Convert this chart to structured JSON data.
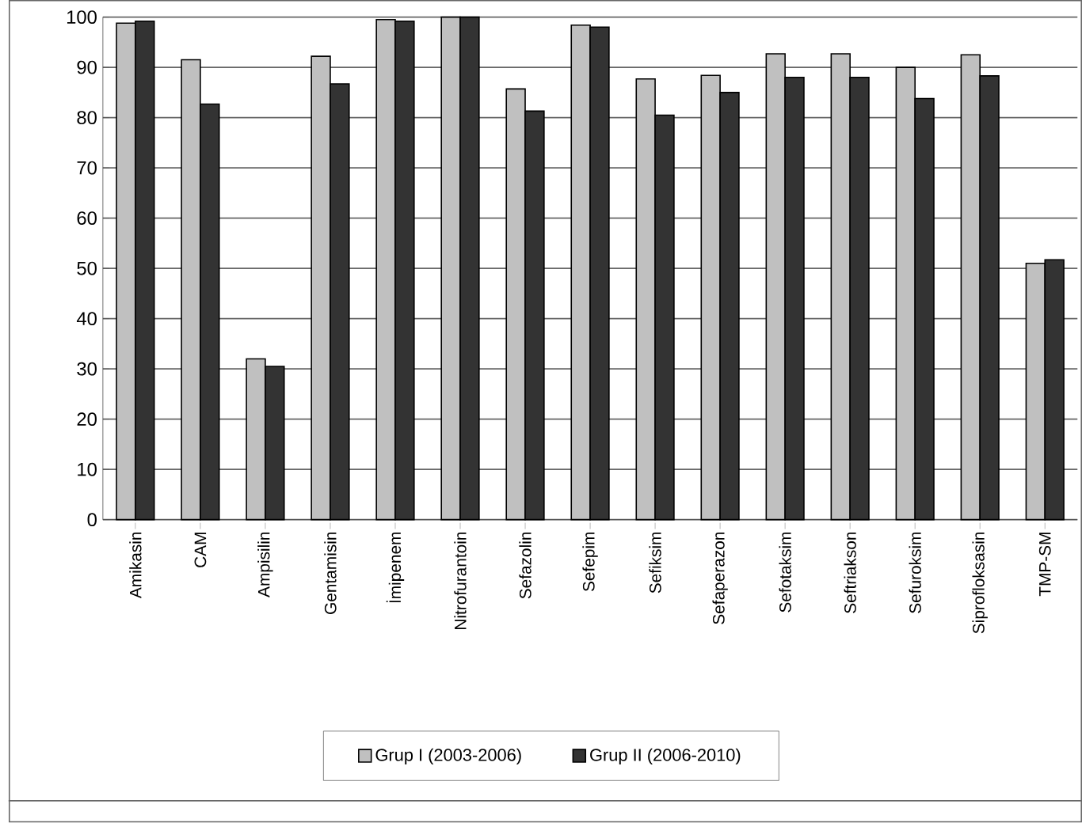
{
  "chart_data": {
    "type": "bar",
    "categories": [
      "Amikasin",
      "CAM",
      "Ampisilin",
      "Gentamisin",
      "İmipenem",
      "Nitrofurantoin",
      "Sefazolin",
      "Sefepim",
      "Sefiksim",
      "Sefaperazon",
      "Sefotaksim",
      "Seftriakson",
      "Sefuroksim",
      "Siprofloksasin",
      "TMP-SM"
    ],
    "series": [
      {
        "name": "Grup I (2003-2006)",
        "color": "#c0c0c0",
        "values": [
          98.8,
          91.5,
          32,
          92.2,
          99.5,
          100,
          85.7,
          98.4,
          87.7,
          88.4,
          92.7,
          92.7,
          90,
          92.5,
          51
        ]
      },
      {
        "name": "Grup II (2006-2010)",
        "color": "#333333",
        "values": [
          99.2,
          82.7,
          30.5,
          86.7,
          99.2,
          100,
          81.3,
          98,
          80.5,
          85,
          88,
          88,
          83.8,
          88.3,
          51.7
        ]
      }
    ],
    "ylim": [
      0,
      100
    ],
    "yticks": [
      0,
      10,
      20,
      30,
      40,
      50,
      60,
      70,
      80,
      90,
      100
    ],
    "grid": "y",
    "legend": "bottom"
  }
}
